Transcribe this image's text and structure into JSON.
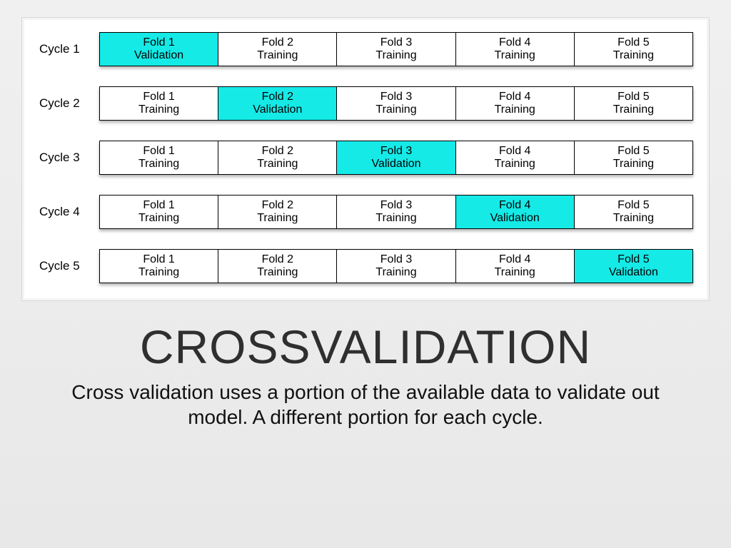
{
  "title": "CROSSVALIDATION",
  "subtitle": "Cross validation uses a portion of the available data to validate out model.  A different portion for each cycle.",
  "diagram": {
    "type": "table",
    "validation_color": "#15eae7",
    "training_color": "#ffffff",
    "cell_border_color": "#000000",
    "panel_background": "#ffffff",
    "panel_border_color": "#d8d8d8",
    "shadow_color": "rgba(0,0,0,0.28)",
    "fold_fontsize": 16,
    "label_fontsize": 17,
    "cycles": [
      {
        "label": "Cycle 1",
        "folds": [
          {
            "line1": "Fold 1",
            "line2": "Validation",
            "role": "validation"
          },
          {
            "line1": "Fold 2",
            "line2": "Training",
            "role": "training"
          },
          {
            "line1": "Fold 3",
            "line2": "Training",
            "role": "training"
          },
          {
            "line1": "Fold 4",
            "line2": "Training",
            "role": "training"
          },
          {
            "line1": "Fold 5",
            "line2": "Training",
            "role": "training"
          }
        ]
      },
      {
        "label": "Cycle 2",
        "folds": [
          {
            "line1": "Fold 1",
            "line2": "Training",
            "role": "training"
          },
          {
            "line1": "Fold 2",
            "line2": "Validation",
            "role": "validation"
          },
          {
            "line1": "Fold 3",
            "line2": "Training",
            "role": "training"
          },
          {
            "line1": "Fold 4",
            "line2": "Training",
            "role": "training"
          },
          {
            "line1": "Fold 5",
            "line2": "Training",
            "role": "training"
          }
        ]
      },
      {
        "label": "Cycle 3",
        "folds": [
          {
            "line1": "Fold 1",
            "line2": "Training",
            "role": "training"
          },
          {
            "line1": "Fold 2",
            "line2": "Training",
            "role": "training"
          },
          {
            "line1": "Fold 3",
            "line2": "Validation",
            "role": "validation"
          },
          {
            "line1": "Fold 4",
            "line2": "Training",
            "role": "training"
          },
          {
            "line1": "Fold 5",
            "line2": "Training",
            "role": "training"
          }
        ]
      },
      {
        "label": "Cycle 4",
        "folds": [
          {
            "line1": "Fold 1",
            "line2": "Training",
            "role": "training"
          },
          {
            "line1": "Fold 2",
            "line2": "Training",
            "role": "training"
          },
          {
            "line1": "Fold 3",
            "line2": "Training",
            "role": "training"
          },
          {
            "line1": "Fold 4",
            "line2": "Validation",
            "role": "validation"
          },
          {
            "line1": "Fold 5",
            "line2": "Training",
            "role": "training"
          }
        ]
      },
      {
        "label": "Cycle 5",
        "folds": [
          {
            "line1": "Fold 1",
            "line2": "Training",
            "role": "training"
          },
          {
            "line1": "Fold 2",
            "line2": "Training",
            "role": "training"
          },
          {
            "line1": "Fold 3",
            "line2": "Training",
            "role": "training"
          },
          {
            "line1": "Fold 4",
            "line2": "Training",
            "role": "training"
          },
          {
            "line1": "Fold 5",
            "line2": "Validation",
            "role": "validation"
          }
        ]
      }
    ]
  },
  "styling": {
    "page_background_top": "#f0f0f0",
    "page_background_bottom": "#e8e8e8",
    "title_color": "#2f2f2f",
    "title_fontsize": 66,
    "subtitle_color": "#111111",
    "subtitle_fontsize": 28
  }
}
